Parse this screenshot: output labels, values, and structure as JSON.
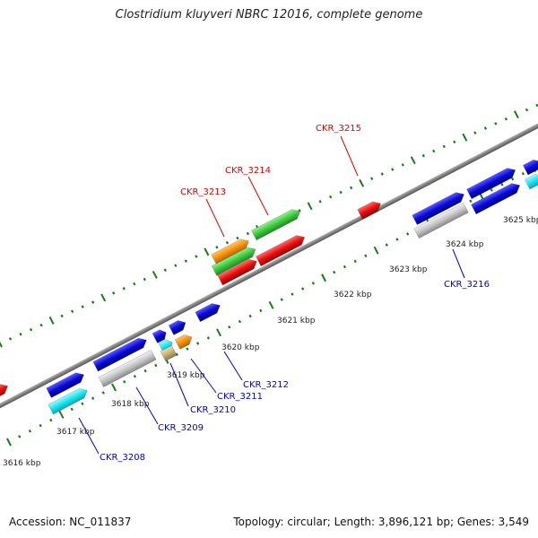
{
  "title": "Clostridium kluyveri NBRC 12016, complete genome",
  "footer": {
    "accession": "Accession: NC_011837",
    "summary": "Topology: circular; Length: 3,896,121 bp; Genes: 3,549"
  },
  "colors": {
    "backbone": "#808080",
    "tick_major": "#1a7a1a",
    "tick_minor": "#2a8a2a",
    "forward_label": "#0000cc",
    "reverse_label": "#dd0000"
  },
  "axis": {
    "unit": "kbp",
    "tick_labels": [
      {
        "text": "3616 kbp",
        "kbp": 3616
      },
      {
        "text": "3617 kbp",
        "kbp": 3617
      },
      {
        "text": "3618 kbp",
        "kbp": 3618
      },
      {
        "text": "3619 kbp",
        "kbp": 3619
      },
      {
        "text": "3620 kbp",
        "kbp": 3620
      },
      {
        "text": "3621 kbp",
        "kbp": 3621
      },
      {
        "text": "3622 kbp",
        "kbp": 3622
      },
      {
        "text": "3623 kbp",
        "kbp": 3623
      },
      {
        "text": "3624 kbp",
        "kbp": 3624
      },
      {
        "text": "3625 kbp",
        "kbp": 3625
      }
    ]
  },
  "labels": [
    {
      "text": "CKR_3208",
      "color": "#0000cc"
    },
    {
      "text": "CKR_3209",
      "color": "#0000cc"
    },
    {
      "text": "CKR_3210",
      "color": "#0000cc"
    },
    {
      "text": "CKR_3211",
      "color": "#0000cc"
    },
    {
      "text": "CKR_3212",
      "color": "#0000cc"
    },
    {
      "text": "CKR_3216",
      "color": "#0000cc"
    },
    {
      "text": "CKR_3213",
      "color": "#dd0000"
    },
    {
      "text": "CKR_3214",
      "color": "#dd0000"
    },
    {
      "text": "CKR_3215",
      "color": "#dd0000"
    }
  ],
  "feature_colors": {
    "blue": "#0a0ad8",
    "cyan": "#19e6f0",
    "grey": "#c4c4c4",
    "orange": "#f5900a",
    "tan": "#c8b27a",
    "green": "#3ec93e",
    "red": "#e81010"
  }
}
